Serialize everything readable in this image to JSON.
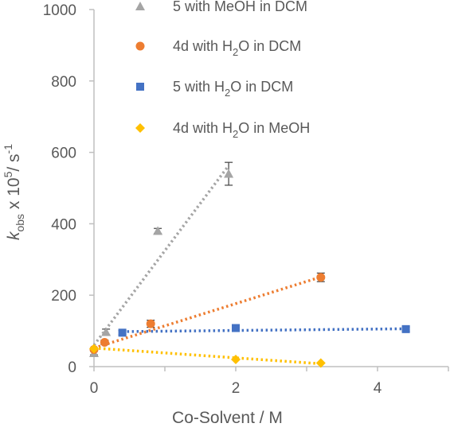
{
  "chart_data": {
    "type": "scatter",
    "xlabel": "Co-Solvent  / M",
    "ylabel_parts": {
      "k": "k",
      "sub": "obs",
      "mid": " x 10",
      "sup": "5",
      "unit": "/ s",
      "unit_sup": "-1"
    },
    "xlim": [
      0,
      5
    ],
    "ylim": [
      0,
      1000
    ],
    "x_ticks": [
      "0",
      "2",
      "4"
    ],
    "x_tick_values": [
      0,
      2,
      4
    ],
    "y_ticks": [
      "0",
      "200",
      "400",
      "600",
      "800",
      "1000"
    ],
    "y_tick_values": [
      0,
      200,
      400,
      600,
      800,
      1000
    ],
    "grid": false,
    "legend_position": "top-right",
    "series": [
      {
        "name": "5 with MeOH in DCM",
        "legend_parts": [
          "5 with MeOH in DCM"
        ],
        "marker": "triangle",
        "color": "#a5a5a5",
        "x": [
          0,
          0.17,
          0.9,
          1.9
        ],
        "y": [
          38,
          97,
          380,
          540
        ],
        "err": [
          5,
          8,
          7,
          32
        ],
        "trend_x": [
          0,
          1.9
        ],
        "trend_y": [
          60,
          563
        ]
      },
      {
        "name": "4d with H2O in DCM",
        "legend_parts": [
          "4d with H",
          "2",
          "O in DCM"
        ],
        "marker": "circle",
        "color": "#ed7d31",
        "x": [
          0,
          0.15,
          0.8,
          3.2
        ],
        "y": [
          48,
          68,
          120,
          250
        ],
        "err": [
          4,
          6,
          10,
          12
        ],
        "trend_x": [
          0,
          3.2
        ],
        "trend_y": [
          52,
          251
        ]
      },
      {
        "name": "5 with H2O in DCM",
        "legend_parts": [
          "5 with H",
          "2",
          "O in DCM"
        ],
        "marker": "square",
        "color": "#4472c4",
        "x": [
          0.4,
          2,
          4.4
        ],
        "y": [
          95,
          108,
          105
        ],
        "err": [
          6,
          8,
          6
        ],
        "trend_x": [
          0.4,
          4.4
        ],
        "trend_y": [
          98,
          106
        ]
      },
      {
        "name": "4d with H2O in MeOH",
        "legend_parts": [
          "4d with H",
          "2",
          "O in MeOH"
        ],
        "marker": "diamond",
        "color": "#ffc000",
        "x": [
          0,
          2,
          3.2
        ],
        "y": [
          50,
          20,
          10
        ],
        "err": [
          0,
          0,
          0
        ],
        "trend_x": [
          0,
          3.2
        ],
        "trend_y": [
          52,
          8
        ]
      }
    ]
  }
}
